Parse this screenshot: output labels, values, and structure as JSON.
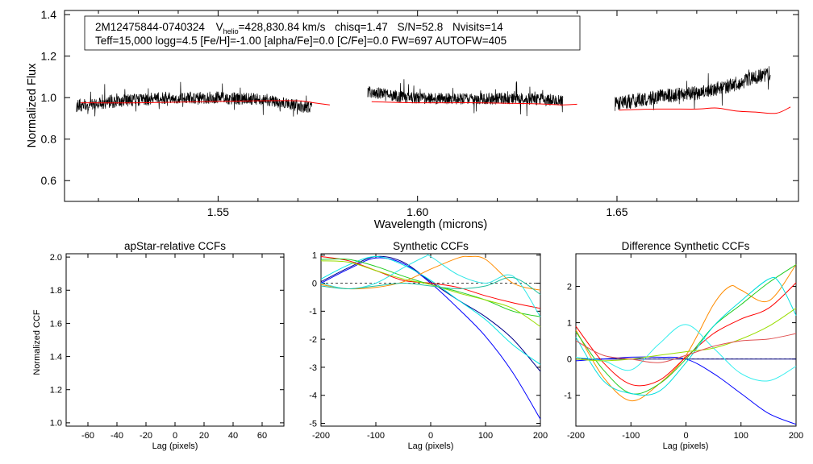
{
  "figure": {
    "header": {
      "star_id": "2M12475844-0740324",
      "vhelio_prefix": "V",
      "vhelio_sub": "helio",
      "vhelio_value": "=428,830.84 km/s",
      "chisq": "chisq=1.47",
      "snr": "S/N=52.8",
      "nvisits": "Nvisits=14",
      "params_line": "Teff=15,000 logg=4.5 [Fe/H]=-1.00 [alpha/Fe]=0.0 [C/Fe]=0.0 FW=697 AUTOFW=405"
    }
  },
  "chart_data": [
    {
      "id": "spectrum",
      "type": "line",
      "title": "",
      "xlabel": "Wavelength (microns)",
      "ylabel": "Normalized Flux",
      "xlim": [
        1.5115,
        1.6955
      ],
      "ylim": [
        0.5,
        1.42
      ],
      "xticks": [
        1.55,
        1.6,
        1.65
      ],
      "xtick_labels": [
        "1.55",
        "1.60",
        "1.65"
      ],
      "yticks": [
        0.6,
        0.8,
        1.0,
        1.2,
        1.4
      ],
      "ytick_labels": [
        "0.6",
        "0.8",
        "1.0",
        "1.2",
        "1.4"
      ],
      "series": [
        {
          "name": "observed",
          "color": "#000000",
          "segments": [
            {
              "x_range": [
                1.5145,
                1.5735
              ],
              "baseline": [
                0.96,
                0.985,
                1.0,
                1.0,
                0.99,
                0.95
              ],
              "noise": 0.03
            },
            {
              "x_range": [
                1.5875,
                1.6365
              ],
              "baseline": [
                1.03,
                1.0,
                0.995,
                0.995,
                0.995,
                0.985
              ],
              "noise": 0.028
            },
            {
              "x_range": [
                1.6495,
                1.6885
              ],
              "baseline": [
                0.97,
                0.99,
                1.01,
                1.02,
                1.04,
                1.08,
                1.12
              ],
              "noise": 0.035
            }
          ]
        },
        {
          "name": "model",
          "color": "#ff0000",
          "segments": [
            {
              "x": [
                1.5155,
                1.53,
                1.545,
                1.56,
                1.57,
                1.574,
                1.578
              ],
              "y": [
                0.975,
                0.975,
                0.98,
                0.985,
                0.985,
                0.975,
                0.965
              ]
            },
            {
              "x": [
                1.5885,
                1.6,
                1.615,
                1.63,
                1.636,
                1.64
              ],
              "y": [
                0.98,
                0.975,
                0.975,
                0.97,
                0.965,
                0.968
              ]
            },
            {
              "x": [
                1.6505,
                1.66,
                1.67,
                1.675,
                1.68,
                1.685,
                1.69,
                1.6935
              ],
              "y": [
                0.94,
                0.945,
                0.945,
                0.95,
                0.935,
                0.93,
                0.925,
                0.955
              ]
            }
          ]
        }
      ]
    },
    {
      "id": "apstar-ccf",
      "type": "line",
      "title": "apStar-relative CCFs",
      "xlabel": "Lag (pixels)",
      "ylabel": "Normalized CCF",
      "xlim": [
        -75,
        75
      ],
      "ylim": [
        0.98,
        2.02
      ],
      "xticks": [
        -60,
        -40,
        -20,
        0,
        20,
        40,
        60
      ],
      "xtick_labels": [
        "-60",
        "-40",
        "-20",
        "0",
        "20",
        "40",
        "60"
      ],
      "yticks": [
        1.0,
        1.2,
        1.4,
        1.6,
        1.8,
        2.0
      ],
      "ytick_labels": [
        "1.0",
        "1.2",
        "1.4",
        "1.6",
        "1.8",
        "2.0"
      ],
      "series": []
    },
    {
      "id": "synthetic-ccf",
      "type": "line",
      "title": "Synthetic CCFs",
      "xlabel": "Lag (pixels)",
      "ylabel": "",
      "xlim": [
        -200,
        200
      ],
      "ylim": [
        -5.1,
        1.05
      ],
      "xticks": [
        -200,
        -100,
        0,
        100,
        200
      ],
      "xtick_labels": [
        "-200",
        "-100",
        "0",
        "100",
        "200"
      ],
      "yticks": [
        -5,
        -4,
        -3,
        -2,
        -1,
        0,
        1
      ],
      "ytick_labels": [
        "-5",
        "-4",
        "-3",
        "-2",
        "-1",
        "0",
        "1"
      ],
      "zero_line": true,
      "series": [
        {
          "name": "blue",
          "color": "#0000ff",
          "x": [
            -200,
            -150,
            -100,
            -50,
            0,
            50,
            100,
            150,
            200
          ],
          "y": [
            0.0,
            0.5,
            0.9,
            0.7,
            0.0,
            -0.9,
            -1.9,
            -3.2,
            -4.85
          ]
        },
        {
          "name": "navy",
          "color": "#00008b",
          "x": [
            -200,
            -150,
            -100,
            -50,
            0,
            50,
            100,
            150,
            200
          ],
          "y": [
            0.05,
            0.55,
            0.95,
            0.75,
            0.05,
            -0.6,
            -1.2,
            -2.0,
            -3.15
          ]
        },
        {
          "name": "cyan-a",
          "color": "#00e5e5",
          "x": [
            -200,
            -150,
            -100,
            -50,
            0,
            50,
            100,
            150,
            200
          ],
          "y": [
            0.15,
            0.65,
            0.95,
            0.65,
            0.1,
            -0.6,
            -1.3,
            -2.2,
            -2.9
          ]
        },
        {
          "name": "red",
          "color": "#ff0000",
          "x": [
            -200,
            -150,
            -100,
            -50,
            0,
            50,
            100,
            150,
            200
          ],
          "y": [
            0.95,
            0.8,
            0.45,
            0.1,
            0.0,
            -0.15,
            -0.45,
            -0.7,
            -0.9
          ]
        },
        {
          "name": "green",
          "color": "#22cc22",
          "x": [
            -200,
            -150,
            -100,
            -50,
            0,
            50,
            100,
            150,
            200
          ],
          "y": [
            0.85,
            0.85,
            0.6,
            0.25,
            -0.05,
            -0.3,
            -0.6,
            -1.0,
            -1.2
          ]
        },
        {
          "name": "yellow-green",
          "color": "#99dd00",
          "x": [
            -200,
            -150,
            -100,
            -50,
            0,
            50,
            100,
            150,
            200
          ],
          "y": [
            0.8,
            0.75,
            0.45,
            0.15,
            -0.05,
            -0.35,
            -0.6,
            -0.9,
            -1.55
          ]
        },
        {
          "name": "orange",
          "color": "#ff8c00",
          "x": [
            -200,
            -150,
            -100,
            -50,
            0,
            50,
            70,
            100,
            150,
            200
          ],
          "y": [
            -0.05,
            -0.2,
            -0.15,
            0.05,
            0.5,
            0.9,
            0.95,
            0.85,
            0.0,
            -0.25
          ]
        },
        {
          "name": "cyan-b",
          "color": "#2ee6e6",
          "x": [
            -200,
            -150,
            -100,
            -50,
            -10,
            0,
            50,
            100,
            150,
            200
          ],
          "y": [
            0.0,
            -0.2,
            0.0,
            0.55,
            0.95,
            0.95,
            0.3,
            0.0,
            0.25,
            -1.2
          ]
        },
        {
          "name": "teal",
          "color": "#20c0a0",
          "x": [
            -200,
            -150,
            -100,
            -50,
            0,
            50,
            100,
            150,
            200
          ],
          "y": [
            -0.1,
            -0.2,
            -0.1,
            0.0,
            -0.1,
            -0.2,
            -0.1,
            0.2,
            -0.4
          ]
        }
      ]
    },
    {
      "id": "difference-ccf",
      "type": "line",
      "title": "Difference Synthetic CCFs",
      "xlabel": "Lag (pixels)",
      "ylabel": "",
      "xlim": [
        -200,
        200
      ],
      "ylim": [
        -1.85,
        2.9
      ],
      "xticks": [
        -200,
        -100,
        0,
        100,
        200
      ],
      "xtick_labels": [
        "-200",
        "-100",
        "0",
        "100",
        "200"
      ],
      "yticks": [
        -1,
        0,
        1,
        2
      ],
      "ytick_labels": [
        "-1",
        "0",
        "1",
        "2"
      ],
      "zero_line": true,
      "series": [
        {
          "name": "navy-flat",
          "color": "#000080",
          "x": [
            -200,
            -100,
            0,
            100,
            200
          ],
          "y": [
            0.0,
            0.0,
            0.0,
            0.0,
            0.0
          ]
        },
        {
          "name": "blue",
          "color": "#0000ff",
          "x": [
            -200,
            -150,
            -100,
            -50,
            0,
            50,
            100,
            150,
            200
          ],
          "y": [
            -0.05,
            0.0,
            0.05,
            0.05,
            0.0,
            -0.4,
            -0.95,
            -1.5,
            -1.8
          ]
        },
        {
          "name": "orange",
          "color": "#ff8c00",
          "x": [
            -200,
            -150,
            -100,
            -50,
            0,
            50,
            80,
            100,
            150,
            200
          ],
          "y": [
            0.8,
            -0.5,
            -1.15,
            -0.7,
            0.1,
            1.5,
            2.0,
            1.9,
            1.6,
            2.6
          ]
        },
        {
          "name": "red",
          "color": "#ff0000",
          "x": [
            -200,
            -150,
            -100,
            -50,
            0,
            50,
            100,
            150,
            200
          ],
          "y": [
            0.9,
            -0.1,
            -0.7,
            -0.6,
            0.05,
            0.7,
            1.1,
            1.4,
            2.1
          ]
        },
        {
          "name": "green",
          "color": "#22cc22",
          "x": [
            -200,
            -150,
            -100,
            -50,
            0,
            50,
            100,
            150,
            200
          ],
          "y": [
            0.75,
            -0.3,
            -0.95,
            -0.7,
            0.0,
            0.9,
            1.5,
            2.1,
            2.6
          ]
        },
        {
          "name": "cyan-a",
          "color": "#00dede",
          "x": [
            -200,
            -150,
            -100,
            -50,
            0,
            50,
            100,
            150,
            170,
            200
          ],
          "y": [
            0.6,
            -0.6,
            -0.95,
            -0.9,
            -0.1,
            0.9,
            1.6,
            2.2,
            2.1,
            1.2
          ]
        },
        {
          "name": "cyan-b",
          "color": "#33eeee",
          "x": [
            -200,
            -150,
            -100,
            -50,
            0,
            50,
            100,
            150,
            200
          ],
          "y": [
            0.05,
            -0.05,
            -0.3,
            0.4,
            0.95,
            0.3,
            -0.4,
            -0.6,
            -0.2
          ]
        },
        {
          "name": "yellow-green",
          "color": "#99dd00",
          "x": [
            -200,
            -150,
            -100,
            -50,
            0,
            50,
            100,
            150,
            200
          ],
          "y": [
            0.0,
            -0.05,
            0.0,
            0.1,
            0.2,
            0.3,
            0.55,
            0.9,
            1.4
          ]
        },
        {
          "name": "salmon",
          "color": "#e05050",
          "x": [
            -200,
            -150,
            -100,
            -50,
            0,
            50,
            100,
            150,
            200
          ],
          "y": [
            0.5,
            0.1,
            0.0,
            -0.1,
            0.1,
            0.35,
            0.5,
            0.55,
            0.7
          ]
        }
      ]
    }
  ]
}
